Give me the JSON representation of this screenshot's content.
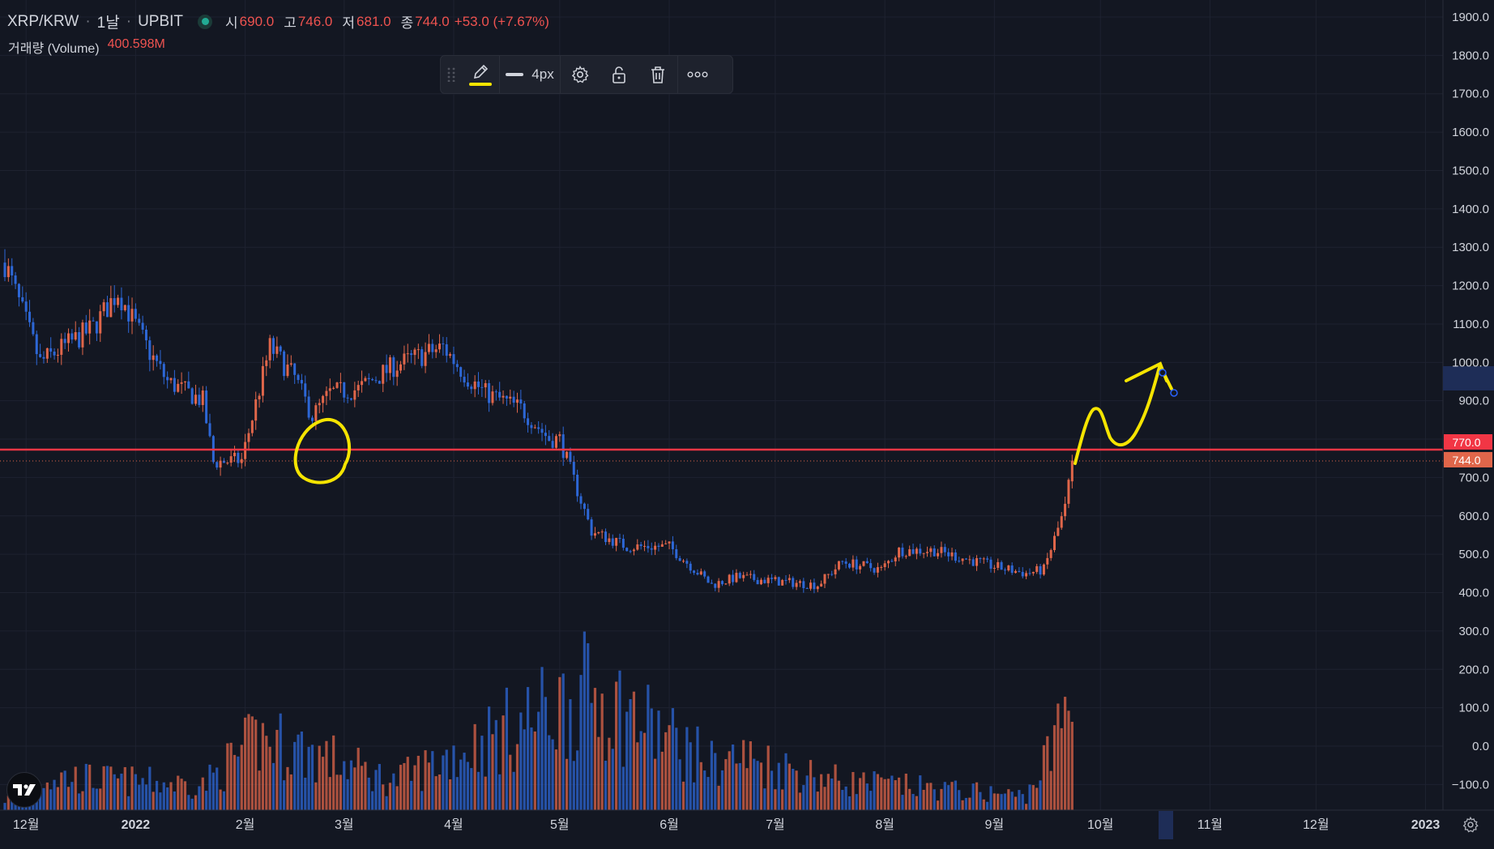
{
  "header": {
    "symbol": "XRP/KRW",
    "interval": "1날",
    "exchange": "UPBIT",
    "separator": "·",
    "open_label": "시",
    "open_value": "690.0",
    "high_label": "고",
    "high_value": "746.0",
    "low_label": "저",
    "low_value": "681.0",
    "close_label": "종",
    "close_value": "744.0",
    "change": "+53.0 (+7.67%)"
  },
  "volume_legend": {
    "label": "거래량 (Volume)",
    "value": "400.598M"
  },
  "toolbar": {
    "line_width_label": "4px",
    "icons": [
      "drag-handle-icon",
      "pencil-icon",
      "line-width-icon",
      "gear-icon",
      "unlock-icon",
      "trash-icon",
      "more-icon"
    ]
  },
  "colors": {
    "background": "#131722",
    "grid": "#1e2230",
    "up": "#e0664a",
    "down": "#2d67d6",
    "horizontal_line": "#f23645",
    "drawing": "#f5e400",
    "scale_text": "#d1d4dc"
  },
  "price_scale": {
    "ticks": [
      "1900.0",
      "1800.0",
      "1700.0",
      "1600.0",
      "1500.0",
      "1400.0",
      "1300.0",
      "1200.0",
      "1100.0",
      "1000.0",
      "900.0",
      "800.0",
      "700.0",
      "600.0",
      "500.0",
      "400.0",
      "300.0",
      "200.0",
      "100.0",
      "0.0",
      "−100.0"
    ],
    "horizontal_line_label": "770.0",
    "last_price_label": "744.0"
  },
  "time_scale": {
    "ticks": [
      "12월",
      "2022",
      "2월",
      "3월",
      "4월",
      "5월",
      "6월",
      "7월",
      "8월",
      "9월",
      "10월",
      "11월",
      "12월",
      "2023"
    ]
  },
  "chart_data": {
    "type": "candlestick",
    "symbol": "XRP/KRW",
    "interval": "1 day",
    "y_range": [
      -150,
      1910
    ],
    "horizontal_line": 770,
    "last_price": 744,
    "last_ohlc": {
      "open": 690,
      "high": 746,
      "low": 681,
      "close": 744
    },
    "monthly_close_path": [
      [
        "2021-11-25",
        1260
      ],
      [
        "2021-12-05",
        1000
      ],
      [
        "2021-12-20",
        1090
      ],
      [
        "2021-12-27",
        1185
      ],
      [
        "2022-01-05",
        1025
      ],
      [
        "2022-01-10",
        950
      ],
      [
        "2022-01-20",
        900
      ],
      [
        "2022-01-23",
        740
      ],
      [
        "2022-01-31",
        745
      ],
      [
        "2022-02-08",
        1040
      ],
      [
        "2022-02-15",
        960
      ],
      [
        "2022-02-20",
        860
      ],
      [
        "2022-02-25",
        920
      ],
      [
        "2022-03-05",
        930
      ],
      [
        "2022-03-15",
        990
      ],
      [
        "2022-03-29",
        1040
      ],
      [
        "2022-04-05",
        960
      ],
      [
        "2022-04-10",
        920
      ],
      [
        "2022-04-20",
        880
      ],
      [
        "2022-04-28",
        800
      ],
      [
        "2022-05-01",
        800
      ],
      [
        "2022-05-10",
        560
      ],
      [
        "2022-05-20",
        520
      ],
      [
        "2022-06-01",
        520
      ],
      [
        "2022-06-13",
        420
      ],
      [
        "2022-06-20",
        440
      ],
      [
        "2022-07-01",
        430
      ],
      [
        "2022-07-13",
        420
      ],
      [
        "2022-07-20",
        480
      ],
      [
        "2022-07-31",
        460
      ],
      [
        "2022-08-05",
        510
      ],
      [
        "2022-08-15",
        510
      ],
      [
        "2022-08-31",
        470
      ],
      [
        "2022-09-10",
        450
      ],
      [
        "2022-09-15",
        460
      ],
      [
        "2022-09-21",
        620
      ],
      [
        "2022-09-23",
        744
      ]
    ],
    "volume_path": [
      [
        "2021-11-25",
        30
      ],
      [
        "2021-12-01",
        40
      ],
      [
        "2021-12-05",
        95
      ],
      [
        "2022-01-20",
        70
      ],
      [
        "2022-02-05",
        200
      ],
      [
        "2022-02-20",
        160
      ],
      [
        "2022-03-15",
        80
      ],
      [
        "2022-05-10",
        330
      ],
      [
        "2022-06-13",
        130
      ],
      [
        "2022-06-20",
        150
      ],
      [
        "2022-07-20",
        80
      ],
      [
        "2022-09-10",
        40
      ],
      [
        "2022-09-18",
        180
      ],
      [
        "2022-09-23",
        360
      ]
    ]
  }
}
